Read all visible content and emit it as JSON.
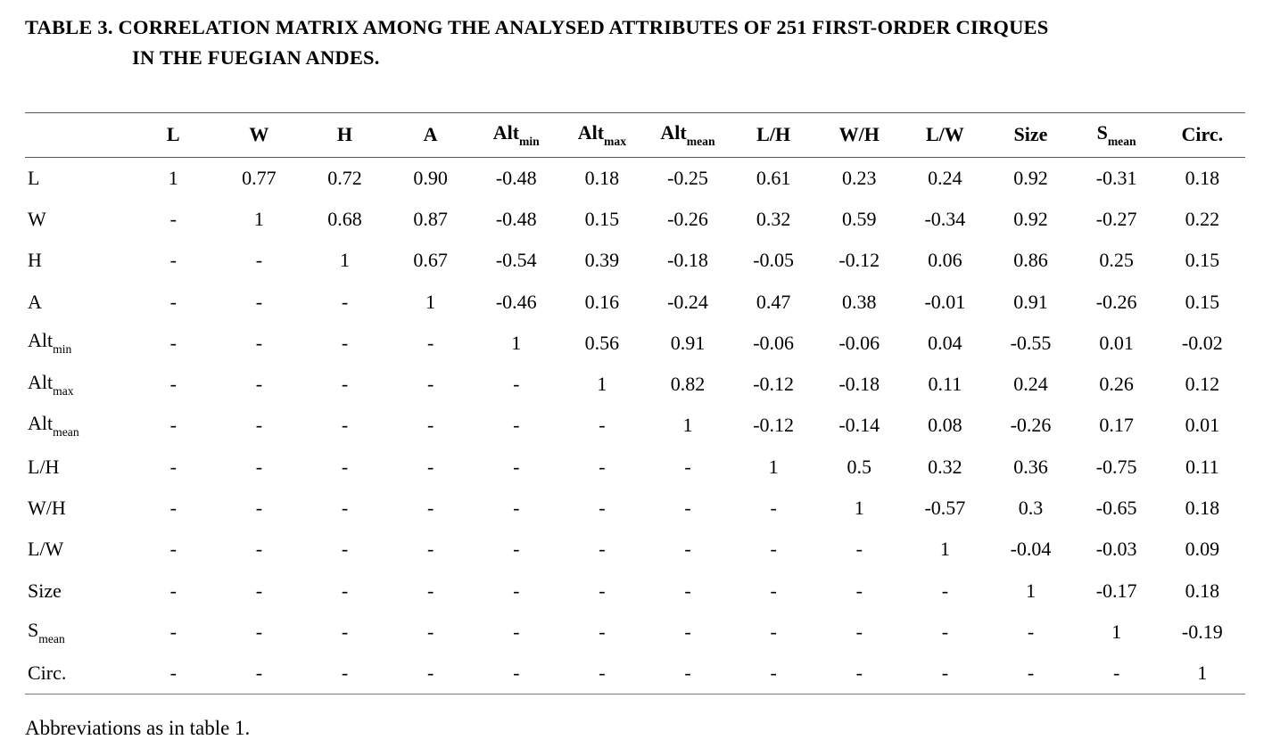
{
  "title": {
    "label": "TABLE 3.",
    "line1": "CORRELATION MATRIX AMONG THE ANALYSED ATTRIBUTES OF 251 FIRST-ORDER CIRQUES",
    "line2": "IN THE FUEGIAN ANDES."
  },
  "footnote": "Abbreviations as in table 1.",
  "chart_data": {
    "type": "table",
    "title": "TABLE 3. CORRELATION MATRIX AMONG THE ANALYSED ATTRIBUTES OF 251 FIRST-ORDER CIRQUES IN THE FUEGIAN ANDES.",
    "columns": [
      {
        "base": "L",
        "sub": ""
      },
      {
        "base": "W",
        "sub": ""
      },
      {
        "base": "H",
        "sub": ""
      },
      {
        "base": "A",
        "sub": ""
      },
      {
        "base": "Alt",
        "sub": "min"
      },
      {
        "base": "Alt",
        "sub": "max"
      },
      {
        "base": "Alt",
        "sub": "mean"
      },
      {
        "base": "L/H",
        "sub": ""
      },
      {
        "base": "W/H",
        "sub": ""
      },
      {
        "base": "L/W",
        "sub": ""
      },
      {
        "base": "Size",
        "sub": ""
      },
      {
        "base": "S",
        "sub": "mean"
      },
      {
        "base": "Circ.",
        "sub": ""
      }
    ],
    "rows": [
      {
        "label": {
          "base": "L",
          "sub": ""
        },
        "values": [
          "1",
          "0.77",
          "0.72",
          "0.90",
          "-0.48",
          "0.18",
          "-0.25",
          "0.61",
          "0.23",
          "0.24",
          "0.92",
          "-0.31",
          "0.18"
        ]
      },
      {
        "label": {
          "base": "W",
          "sub": ""
        },
        "values": [
          "-",
          "1",
          "0.68",
          "0.87",
          "-0.48",
          "0.15",
          "-0.26",
          "0.32",
          "0.59",
          "-0.34",
          "0.92",
          "-0.27",
          "0.22"
        ]
      },
      {
        "label": {
          "base": "H",
          "sub": ""
        },
        "values": [
          "-",
          "-",
          "1",
          "0.67",
          "-0.54",
          "0.39",
          "-0.18",
          "-0.05",
          "-0.12",
          "0.06",
          "0.86",
          "0.25",
          "0.15"
        ]
      },
      {
        "label": {
          "base": "A",
          "sub": ""
        },
        "values": [
          "-",
          "-",
          "-",
          "1",
          "-0.46",
          "0.16",
          "-0.24",
          "0.47",
          "0.38",
          "-0.01",
          "0.91",
          "-0.26",
          "0.15"
        ]
      },
      {
        "label": {
          "base": "Alt",
          "sub": "min"
        },
        "values": [
          "-",
          "-",
          "-",
          "-",
          "1",
          "0.56",
          "0.91",
          "-0.06",
          "-0.06",
          "0.04",
          "-0.55",
          "0.01",
          "-0.02"
        ]
      },
      {
        "label": {
          "base": "Alt",
          "sub": "max"
        },
        "values": [
          "-",
          "-",
          "-",
          "-",
          "-",
          "1",
          "0.82",
          "-0.12",
          "-0.18",
          "0.11",
          "0.24",
          "0.26",
          "0.12"
        ]
      },
      {
        "label": {
          "base": "Alt",
          "sub": "mean"
        },
        "values": [
          "-",
          "-",
          "-",
          "-",
          "-",
          "-",
          "1",
          "-0.12",
          "-0.14",
          "0.08",
          "-0.26",
          "0.17",
          "0.01"
        ]
      },
      {
        "label": {
          "base": "L/H",
          "sub": ""
        },
        "values": [
          "-",
          "-",
          "-",
          "-",
          "-",
          "-",
          "-",
          "1",
          "0.5",
          "0.32",
          "0.36",
          "-0.75",
          "0.11"
        ]
      },
      {
        "label": {
          "base": "W/H",
          "sub": ""
        },
        "values": [
          "-",
          "-",
          "-",
          "-",
          "-",
          "-",
          "-",
          "-",
          "1",
          "-0.57",
          "0.3",
          "-0.65",
          "0.18"
        ]
      },
      {
        "label": {
          "base": "L/W",
          "sub": ""
        },
        "values": [
          "-",
          "-",
          "-",
          "-",
          "-",
          "-",
          "-",
          "-",
          "-",
          "1",
          "-0.04",
          "-0.03",
          "0.09"
        ]
      },
      {
        "label": {
          "base": "Size",
          "sub": ""
        },
        "values": [
          "-",
          "-",
          "-",
          "-",
          "-",
          "-",
          "-",
          "-",
          "-",
          "-",
          "1",
          "-0.17",
          "0.18"
        ]
      },
      {
        "label": {
          "base": "S",
          "sub": "mean"
        },
        "values": [
          "-",
          "-",
          "-",
          "-",
          "-",
          "-",
          "-",
          "-",
          "-",
          "-",
          "-",
          "1",
          "-0.19"
        ]
      },
      {
        "label": {
          "base": "Circ.",
          "sub": ""
        },
        "values": [
          "-",
          "-",
          "-",
          "-",
          "-",
          "-",
          "-",
          "-",
          "-",
          "-",
          "-",
          "-",
          "1"
        ]
      }
    ]
  }
}
